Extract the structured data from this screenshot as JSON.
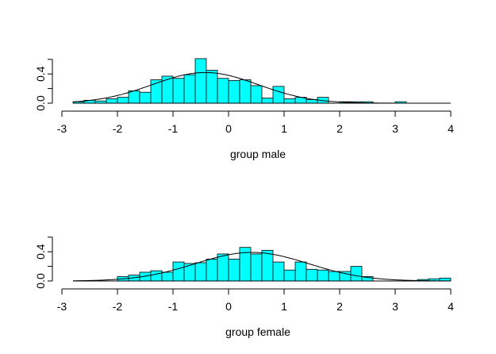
{
  "chart_data": [
    {
      "type": "bar",
      "subtype": "histogram-with-density",
      "xlabel": "group male",
      "ylabel": "",
      "xlim": [
        -3,
        4
      ],
      "ylim": [
        0,
        0.6
      ],
      "x_ticks": [
        "-3",
        "-2",
        "-1",
        "0",
        "1",
        "2",
        "3",
        "4"
      ],
      "y_ticks": [
        "0.0",
        "0.4"
      ],
      "bin_width": 0.2,
      "bins_start": [
        -2.8,
        -2.6,
        -2.4,
        -2.2,
        -2.0,
        -1.8,
        -1.6,
        -1.4,
        -1.2,
        -1.0,
        -0.8,
        -0.6,
        -0.4,
        -0.2,
        0.0,
        0.2,
        0.4,
        0.6,
        0.8,
        1.0,
        1.2,
        1.4,
        1.6,
        1.8,
        2.0,
        2.2,
        2.4,
        2.6,
        2.8,
        3.0
      ],
      "densities": [
        0.02,
        0.04,
        0.03,
        0.06,
        0.08,
        0.17,
        0.15,
        0.32,
        0.37,
        0.34,
        0.39,
        0.61,
        0.45,
        0.34,
        0.31,
        0.32,
        0.24,
        0.07,
        0.23,
        0.06,
        0.08,
        0.05,
        0.08,
        0.0,
        0.02,
        0.02,
        0.02,
        0.0,
        0.0,
        0.02
      ],
      "density_curve": {
        "mean": -0.42,
        "sd": 0.95
      }
    },
    {
      "type": "bar",
      "subtype": "histogram-with-density",
      "xlabel": "group female",
      "ylabel": "",
      "xlim": [
        -3,
        4
      ],
      "ylim": [
        0,
        0.6
      ],
      "x_ticks": [
        "-3",
        "-2",
        "-1",
        "0",
        "1",
        "2",
        "3",
        "4"
      ],
      "y_ticks": [
        "0.0",
        "0.4"
      ],
      "bin_width": 0.2,
      "bins_start": [
        -2.0,
        -1.8,
        -1.6,
        -1.4,
        -1.2,
        -1.0,
        -0.8,
        -0.6,
        -0.4,
        -0.2,
        0.0,
        0.2,
        0.4,
        0.6,
        0.8,
        1.0,
        1.2,
        1.4,
        1.6,
        1.8,
        2.0,
        2.2,
        2.4,
        3.4,
        3.6,
        3.8
      ],
      "densities": [
        0.06,
        0.08,
        0.12,
        0.14,
        0.12,
        0.26,
        0.24,
        0.25,
        0.3,
        0.37,
        0.3,
        0.46,
        0.37,
        0.42,
        0.26,
        0.15,
        0.26,
        0.16,
        0.15,
        0.13,
        0.13,
        0.2,
        0.06,
        0.02,
        0.03,
        0.04
      ],
      "density_curve": {
        "mean": 0.42,
        "sd": 1.02
      }
    }
  ],
  "colors": {
    "bar_fill": "#00ffff",
    "bar_stroke": "#000000",
    "curve": "#000000",
    "axis": "#000000",
    "background": "#ffffff"
  }
}
